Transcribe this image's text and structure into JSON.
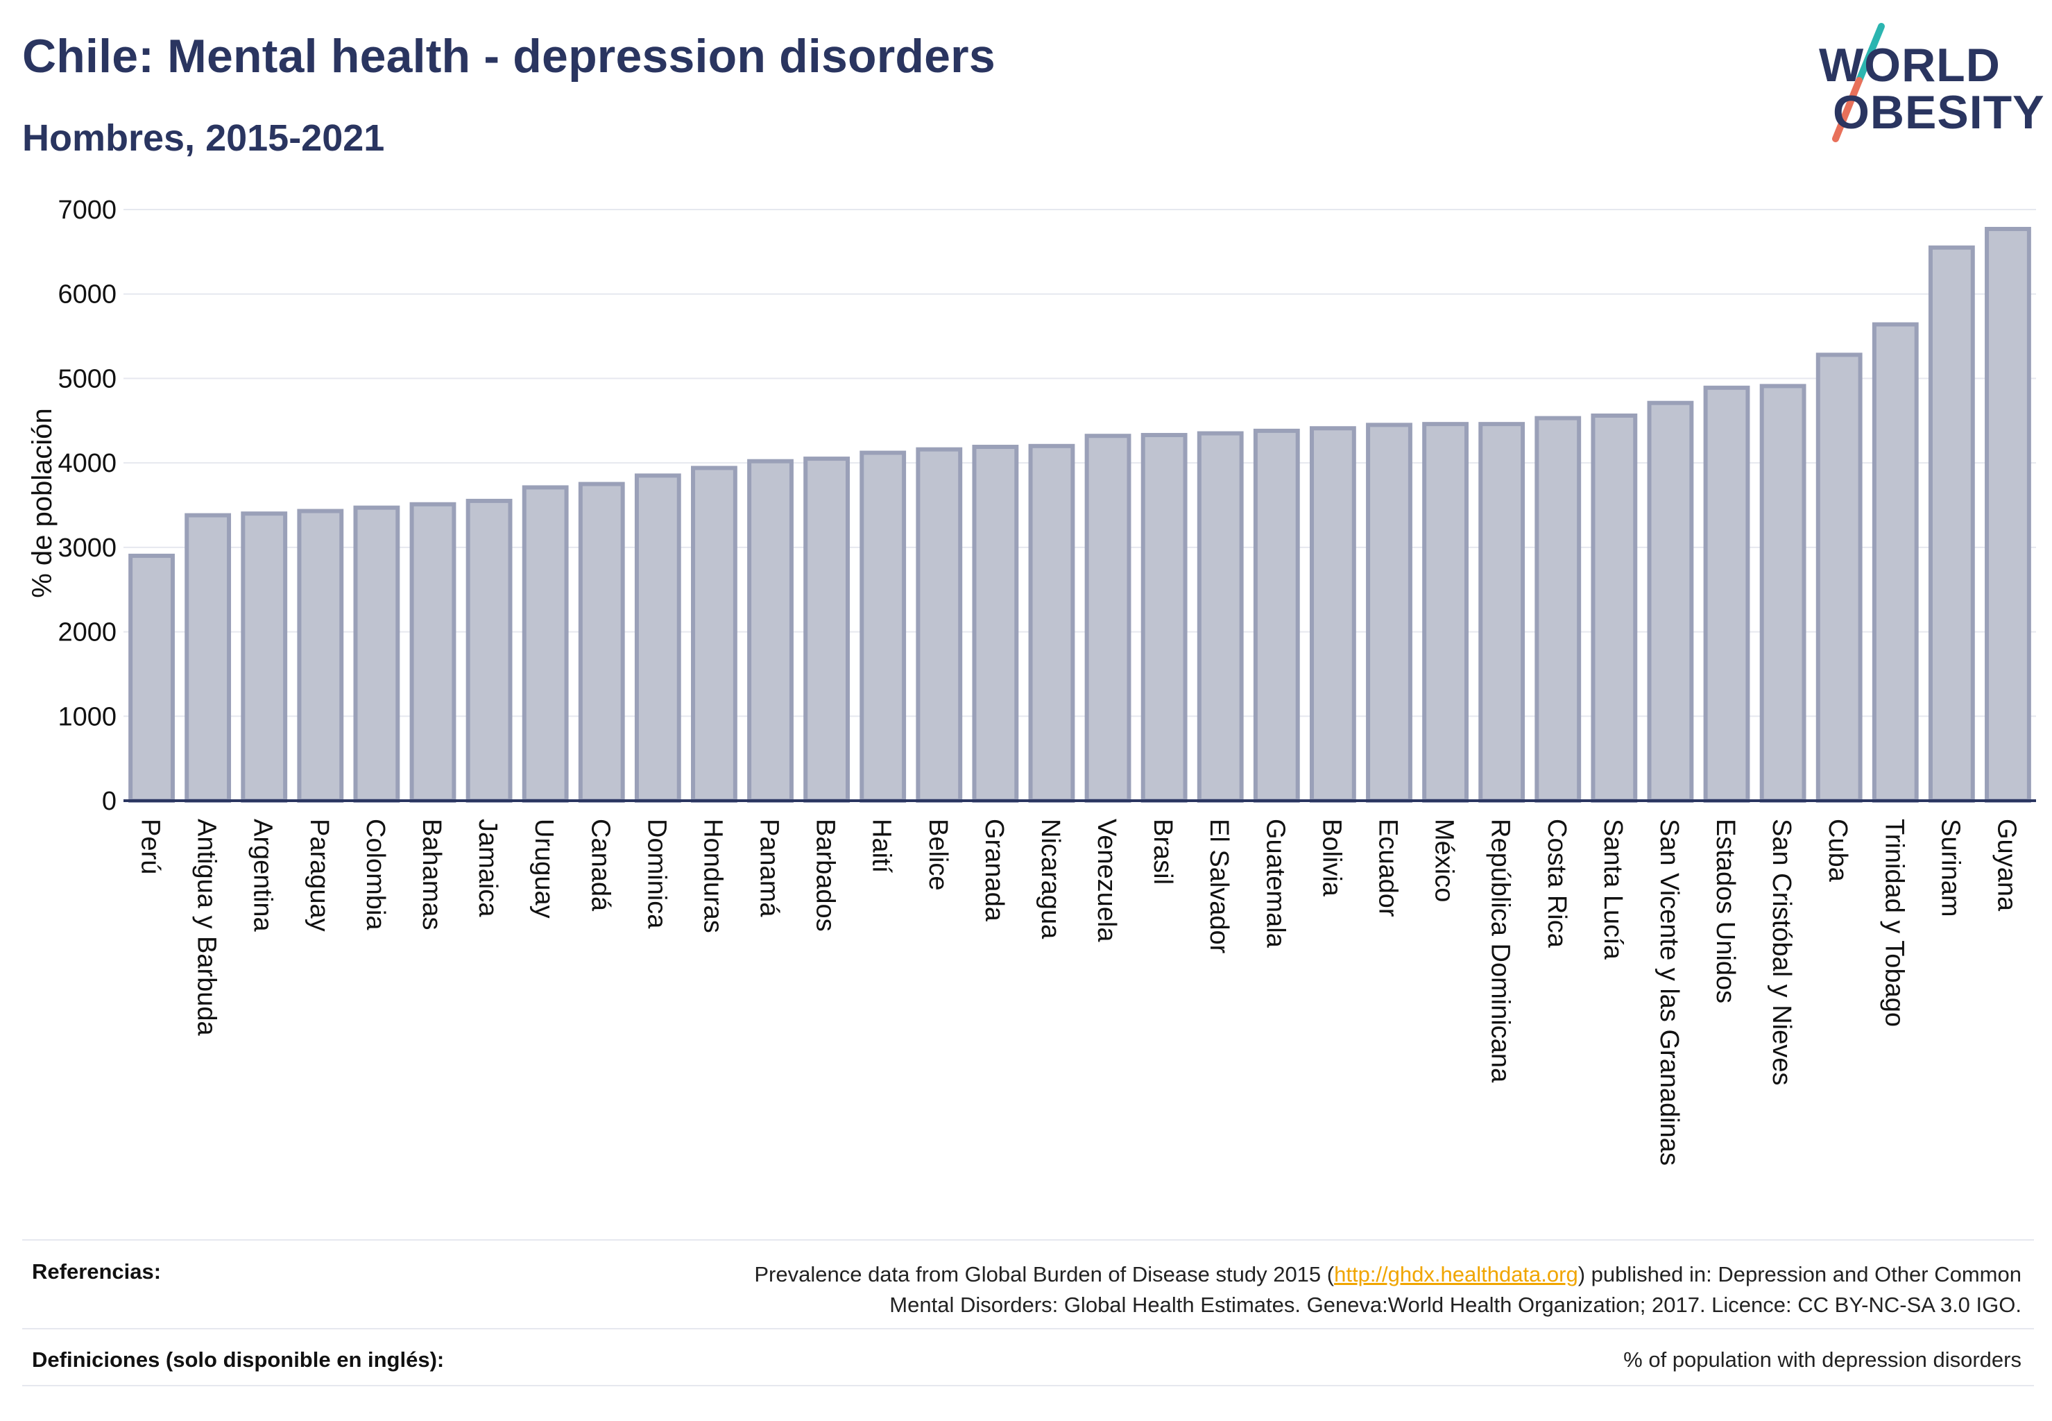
{
  "header": {
    "title": "Chile: Mental health - depression disorders",
    "subtitle": "Hombres, 2015-2021"
  },
  "logo": {
    "line1": "WORLD",
    "line2": "OBESITY",
    "colors": {
      "text": "#2a3560",
      "slash_top": "#2bb5b0",
      "slash_bottom": "#e8705a"
    }
  },
  "chart_data": {
    "type": "bar",
    "title": "",
    "xlabel": "",
    "ylabel": "% de población",
    "ylim": [
      0,
      7000
    ],
    "yticks": [
      0,
      1000,
      2000,
      3000,
      4000,
      5000,
      6000,
      7000
    ],
    "grid": true,
    "colors": {
      "bar_fill": "#bfc3d0",
      "bar_stroke": "#9aa0b8",
      "axis": "#2a3560",
      "grid": "#e6e8ef"
    },
    "categories": [
      "Perú",
      "Antigua y Barbuda",
      "Argentina",
      "Paraguay",
      "Colombia",
      "Bahamas",
      "Jamaica",
      "Uruguay",
      "Canadá",
      "Dominica",
      "Honduras",
      "Panamá",
      "Barbados",
      "Haití",
      "Belice",
      "Granada",
      "Nicaragua",
      "Venezuela",
      "Brasil",
      "El Salvador",
      "Guatemala",
      "Bolivia",
      "Ecuador",
      "México",
      "República Dominicana",
      "Costa Rica",
      "Santa Lucía",
      "San Vicente y las Granadinas",
      "Estados Unidos",
      "San Cristóbal y Nieves",
      "Cuba",
      "Trinidad y Tobago",
      "Surinam",
      "Guyana"
    ],
    "values": [
      2900,
      3380,
      3400,
      3430,
      3470,
      3510,
      3550,
      3710,
      3750,
      3850,
      3940,
      4020,
      4050,
      4120,
      4160,
      4190,
      4200,
      4320,
      4330,
      4350,
      4380,
      4410,
      4450,
      4460,
      4460,
      4530,
      4560,
      4710,
      4890,
      4910,
      5280,
      5640,
      6550,
      6770
    ]
  },
  "footer": {
    "references_label": "Referencias:",
    "references_pre": "Prevalence data from Global Burden of Disease study 2015 (",
    "references_link": "http://ghdx.healthdata.org",
    "references_post": ") published in: Depression and Other Common",
    "references_line2": "Mental Disorders: Global Health Estimates. Geneva:World Health Organization; 2017. Licence: CC BY-NC-SA 3.0 IGO.",
    "definitions_label": "Definiciones (solo disponible en inglés):",
    "definitions_text": "% of population with depression disorders"
  }
}
